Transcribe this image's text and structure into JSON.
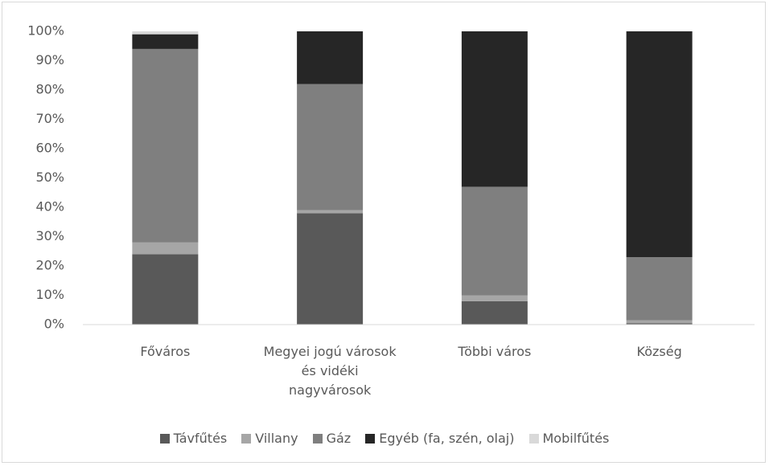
{
  "chart_data": {
    "type": "stacked_bar",
    "categories": [
      "Főváros",
      "Megyei jogú városok és vidéki nagyvárosok",
      "Többi város",
      "Község"
    ],
    "series": [
      {
        "name": "Távfűtés",
        "color": "#595959",
        "values": [
          24,
          38,
          8,
          0.5
        ]
      },
      {
        "name": "Villany",
        "color": "#a6a6a6",
        "values": [
          4,
          1,
          2,
          1
        ]
      },
      {
        "name": "Gáz",
        "color": "#7f7f7f",
        "values": [
          66,
          43,
          37,
          21.5
        ]
      },
      {
        "name": "Egyéb (fa, szén, olaj)",
        "color": "#262626",
        "values": [
          5,
          18,
          53,
          77
        ]
      },
      {
        "name": "Mobilfűtés",
        "color": "#d9d9d9",
        "values": [
          1,
          0,
          0,
          0
        ]
      }
    ],
    "ylim": [
      0,
      100
    ],
    "yticks": [
      {
        "value": 0,
        "label": "0%"
      },
      {
        "value": 10,
        "label": "10%"
      },
      {
        "value": 20,
        "label": "20%"
      },
      {
        "value": 30,
        "label": "30%"
      },
      {
        "value": 40,
        "label": "40%"
      },
      {
        "value": 50,
        "label": "50%"
      },
      {
        "value": 60,
        "label": "60%"
      },
      {
        "value": 70,
        "label": "70%"
      },
      {
        "value": 80,
        "label": "80%"
      },
      {
        "value": 90,
        "label": "90%"
      },
      {
        "value": 100,
        "label": "100%"
      }
    ],
    "legend": "bottom"
  }
}
